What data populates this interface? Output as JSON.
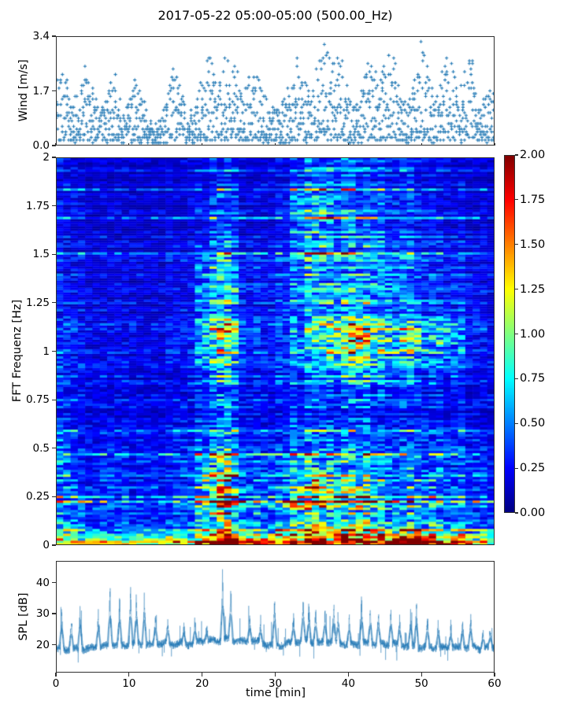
{
  "figure": {
    "title": "2017-05-22 05:00-05:00 (500.00_Hz)",
    "background": "#ffffff",
    "accent_color": "#1f77b4"
  },
  "chart_data": [
    {
      "id": "wind",
      "type": "scatter",
      "marker": "plus",
      "color": "#1f77b4",
      "ylabel": "Wind [m/s]",
      "ylim": [
        0,
        3.4
      ],
      "xlim": [
        0,
        60
      ],
      "yticks": [
        {
          "v": 0.0,
          "label": "0.0"
        },
        {
          "v": 1.7,
          "label": "1.7"
        },
        {
          "v": 3.4,
          "label": "3.4"
        }
      ],
      "envelope_minutes": [
        0,
        1,
        2,
        3,
        4,
        5,
        6,
        7,
        8,
        9,
        10,
        11,
        12,
        13,
        14,
        15,
        16,
        17,
        18,
        19,
        20,
        21,
        22,
        23,
        24,
        25,
        26,
        27,
        28,
        29,
        30,
        31,
        32,
        33,
        34,
        35,
        36,
        37,
        38,
        39,
        40,
        41,
        42,
        43,
        44,
        45,
        46,
        47,
        48,
        49,
        50,
        51,
        52,
        53,
        54,
        55,
        56,
        57,
        58,
        59,
        60
      ],
      "envelope_mean_mps": [
        1.2,
        1.4,
        0.7,
        0.8,
        1.3,
        1.0,
        0.5,
        0.9,
        1.3,
        0.6,
        0.7,
        1.2,
        0.8,
        0.45,
        0.4,
        0.6,
        1.3,
        1.0,
        0.5,
        0.6,
        1.1,
        1.5,
        0.9,
        1.4,
        1.6,
        1.1,
        0.9,
        1.3,
        1.0,
        0.7,
        0.6,
        0.7,
        1.0,
        1.5,
        1.1,
        0.8,
        1.5,
        1.7,
        1.3,
        1.5,
        0.9,
        0.6,
        1.0,
        1.5,
        1.2,
        1.3,
        1.6,
        1.0,
        0.6,
        1.2,
        1.7,
        1.2,
        0.7,
        1.3,
        1.6,
        0.8,
        1.3,
        1.5,
        0.6,
        0.9,
        1.1
      ],
      "points": 1500,
      "quantize_step": 0.085,
      "t_quantize_min": 0.22,
      "seed": 42
    },
    {
      "id": "spectrogram",
      "type": "heatmap",
      "colormap": "jet",
      "ylabel": "FFT Frequenz [Hz]",
      "ylim": [
        0,
        2
      ],
      "xlim": [
        0,
        60
      ],
      "zlim": [
        0,
        2
      ],
      "yticks": [
        {
          "v": 0,
          "label": "0"
        },
        {
          "v": 0.25,
          "label": "0.25"
        },
        {
          "v": 0.5,
          "label": "0.5"
        },
        {
          "v": 0.75,
          "label": "0.75"
        },
        {
          "v": 1,
          "label": "1"
        },
        {
          "v": 1.25,
          "label": "1.25"
        },
        {
          "v": 1.5,
          "label": "1.5"
        },
        {
          "v": 1.75,
          "label": "1.75"
        },
        {
          "v": 2,
          "label": "2"
        }
      ],
      "grid_note": "mean intensity grid; rows = frequency bins 0->2 Hz (bottom->top), cols = time bins 0->60 min",
      "freq_bin_hz": 0.125,
      "time_bin_min": 2.5,
      "values": [
        [
          0.9,
          0.75,
          0.7,
          0.8,
          0.7,
          0.8,
          0.9,
          0.85,
          1.3,
          1.5,
          1.0,
          0.9,
          1.3,
          1.6,
          1.8,
          1.5,
          1.7,
          1.9,
          1.6,
          1.8,
          1.4,
          1.2,
          1.0,
          0.9
        ],
        [
          0.55,
          0.45,
          0.4,
          0.45,
          0.4,
          0.35,
          0.4,
          0.45,
          0.85,
          1.0,
          0.6,
          0.5,
          0.7,
          0.9,
          0.8,
          0.7,
          0.8,
          0.7,
          0.6,
          0.7,
          0.6,
          0.5,
          0.45,
          0.4
        ],
        [
          0.45,
          0.35,
          0.3,
          0.35,
          0.3,
          0.3,
          0.3,
          0.35,
          0.9,
          1.1,
          0.5,
          0.4,
          0.5,
          1.0,
          1.2,
          0.9,
          0.8,
          0.7,
          0.5,
          0.6,
          0.5,
          0.4,
          0.35,
          0.3
        ],
        [
          0.35,
          0.3,
          0.25,
          0.3,
          0.25,
          0.25,
          0.25,
          0.3,
          0.6,
          0.7,
          0.35,
          0.3,
          0.35,
          0.5,
          0.55,
          0.45,
          0.5,
          0.45,
          0.4,
          0.45,
          0.4,
          0.35,
          0.3,
          0.25
        ],
        [
          0.3,
          0.25,
          0.22,
          0.25,
          0.22,
          0.2,
          0.22,
          0.25,
          0.35,
          0.4,
          0.28,
          0.25,
          0.28,
          0.35,
          0.38,
          0.32,
          0.35,
          0.32,
          0.3,
          0.32,
          0.3,
          0.28,
          0.25,
          0.22
        ],
        [
          0.28,
          0.24,
          0.2,
          0.22,
          0.2,
          0.18,
          0.2,
          0.22,
          0.3,
          0.35,
          0.25,
          0.22,
          0.25,
          0.3,
          0.32,
          0.28,
          0.3,
          0.28,
          0.26,
          0.28,
          0.26,
          0.24,
          0.22,
          0.2
        ],
        [
          0.25,
          0.22,
          0.2,
          0.22,
          0.2,
          0.18,
          0.2,
          0.22,
          0.35,
          0.4,
          0.25,
          0.22,
          0.25,
          0.3,
          0.35,
          0.35,
          0.4,
          0.38,
          0.32,
          0.3,
          0.28,
          0.25,
          0.22,
          0.2
        ],
        [
          0.25,
          0.22,
          0.2,
          0.22,
          0.2,
          0.18,
          0.2,
          0.25,
          0.5,
          0.55,
          0.3,
          0.25,
          0.3,
          0.4,
          0.5,
          0.55,
          0.6,
          0.55,
          0.5,
          0.45,
          0.4,
          0.35,
          0.25,
          0.22
        ],
        [
          0.3,
          0.25,
          0.22,
          0.25,
          0.22,
          0.2,
          0.25,
          0.3,
          0.9,
          1.0,
          0.35,
          0.3,
          0.35,
          0.6,
          0.9,
          1.0,
          1.1,
          1.0,
          0.9,
          0.95,
          0.8,
          0.6,
          0.3,
          0.25
        ],
        [
          0.25,
          0.22,
          0.2,
          0.22,
          0.2,
          0.18,
          0.2,
          0.25,
          0.45,
          0.5,
          0.28,
          0.25,
          0.3,
          0.4,
          0.5,
          0.5,
          0.55,
          0.5,
          0.45,
          0.4,
          0.35,
          0.3,
          0.25,
          0.22
        ],
        [
          0.22,
          0.2,
          0.18,
          0.2,
          0.18,
          0.17,
          0.2,
          0.24,
          0.55,
          0.6,
          0.28,
          0.25,
          0.3,
          0.5,
          0.6,
          0.5,
          0.45,
          0.5,
          0.45,
          0.4,
          0.3,
          0.28,
          0.22,
          0.2
        ],
        [
          0.22,
          0.2,
          0.18,
          0.2,
          0.18,
          0.16,
          0.18,
          0.22,
          0.4,
          0.45,
          0.25,
          0.22,
          0.28,
          0.45,
          0.5,
          0.4,
          0.4,
          0.45,
          0.4,
          0.35,
          0.28,
          0.25,
          0.2,
          0.18
        ],
        [
          0.2,
          0.18,
          0.17,
          0.18,
          0.17,
          0.16,
          0.17,
          0.2,
          0.3,
          0.35,
          0.22,
          0.2,
          0.25,
          0.5,
          0.6,
          0.45,
          0.35,
          0.4,
          0.35,
          0.3,
          0.25,
          0.22,
          0.2,
          0.17
        ],
        [
          0.2,
          0.18,
          0.16,
          0.18,
          0.16,
          0.15,
          0.17,
          0.2,
          0.28,
          0.3,
          0.2,
          0.18,
          0.22,
          0.55,
          0.65,
          0.45,
          0.3,
          0.35,
          0.3,
          0.28,
          0.22,
          0.2,
          0.18,
          0.16
        ],
        [
          0.18,
          0.17,
          0.15,
          0.17,
          0.15,
          0.14,
          0.16,
          0.18,
          0.25,
          0.28,
          0.2,
          0.18,
          0.2,
          0.4,
          0.45,
          0.35,
          0.28,
          0.3,
          0.28,
          0.25,
          0.2,
          0.18,
          0.17,
          0.15
        ],
        [
          0.18,
          0.16,
          0.15,
          0.16,
          0.15,
          0.14,
          0.15,
          0.17,
          0.22,
          0.25,
          0.18,
          0.17,
          0.19,
          0.3,
          0.35,
          0.3,
          0.25,
          0.28,
          0.25,
          0.22,
          0.19,
          0.17,
          0.16,
          0.15
        ]
      ],
      "col_profile": [
        1.05,
        1.0,
        0.95,
        1.0,
        0.9,
        0.95,
        1.0,
        1.0,
        1.1,
        1.15,
        0.85,
        0.9,
        1.0,
        1.05,
        1.1,
        1.05,
        1.1,
        1.05,
        1.0,
        1.05,
        1.0,
        0.95,
        0.95,
        1.0
      ],
      "render": {
        "rows": 164,
        "cols": 60,
        "seed": 7,
        "bottom_band_hot_from_min": 19,
        "bottom_band_hot_to_min": 57,
        "bottom_band_hot_level": 1.8,
        "bottom_band_cool_level": 1.2
      }
    },
    {
      "id": "colorbar",
      "type": "colorbar",
      "colormap": "jet",
      "lim": [
        0,
        2
      ],
      "ticks": [
        {
          "v": 0.0,
          "label": "0.00"
        },
        {
          "v": 0.25,
          "label": "0.25"
        },
        {
          "v": 0.5,
          "label": "0.50"
        },
        {
          "v": 0.75,
          "label": "0.75"
        },
        {
          "v": 1.0,
          "label": "1.00"
        },
        {
          "v": 1.25,
          "label": "1.25"
        },
        {
          "v": 1.5,
          "label": "1.50"
        },
        {
          "v": 1.75,
          "label": "1.75"
        },
        {
          "v": 2.0,
          "label": "2.00"
        }
      ]
    },
    {
      "id": "spl",
      "type": "line",
      "color": "#1f77b4",
      "alpha": 0.5,
      "ylabel": "SPL [dB]",
      "xlabel": "time [min]",
      "ylim": [
        11,
        47
      ],
      "xlim": [
        0,
        60
      ],
      "yticks": [
        {
          "v": 20,
          "label": "20"
        },
        {
          "v": 30,
          "label": "30"
        },
        {
          "v": 40,
          "label": "40"
        }
      ],
      "xticks": [
        {
          "v": 0,
          "label": "0"
        },
        {
          "v": 10,
          "label": "10"
        },
        {
          "v": 20,
          "label": "20"
        },
        {
          "v": 30,
          "label": "30"
        },
        {
          "v": 40,
          "label": "40"
        },
        {
          "v": 50,
          "label": "50"
        },
        {
          "v": 60,
          "label": "60"
        }
      ],
      "base_db_per_minute": [
        18.5,
        18.5,
        18.5,
        19,
        18.5,
        19,
        19.5,
        19.5,
        20,
        19.5,
        20,
        20.5,
        20,
        20,
        20.5,
        20.5,
        20,
        20.5,
        20,
        20.5,
        21,
        21.5,
        21,
        22,
        21.5,
        21,
        21,
        21.5,
        20.5,
        20,
        19.5,
        20,
        20.5,
        21,
        21.5,
        21,
        20.5,
        21,
        21,
        20.5,
        20,
        20,
        20.5,
        20,
        20.5,
        20,
        20.5,
        20,
        19.5,
        19.5,
        19,
        19.5,
        19,
        19,
        19.5,
        19,
        19,
        19.5,
        18.5,
        19,
        19
      ],
      "spikes_t_peak": [
        [
          0.8,
          32
        ],
        [
          2.1,
          31
        ],
        [
          3.3,
          34
        ],
        [
          5.8,
          33
        ],
        [
          7.4,
          40
        ],
        [
          8.7,
          36
        ],
        [
          10.2,
          40
        ],
        [
          11.0,
          37
        ],
        [
          12.1,
          38
        ],
        [
          13.6,
          30
        ],
        [
          15.3,
          28
        ],
        [
          17.5,
          27
        ],
        [
          19.0,
          29
        ],
        [
          20.6,
          28
        ],
        [
          22.8,
          45
        ],
        [
          23.9,
          39
        ],
        [
          26.5,
          30
        ],
        [
          28.0,
          28
        ],
        [
          29.9,
          38
        ],
        [
          32.5,
          30
        ],
        [
          33.8,
          35
        ],
        [
          34.6,
          34
        ],
        [
          35.5,
          33
        ],
        [
          36.8,
          32
        ],
        [
          38.0,
          34
        ],
        [
          38.6,
          31
        ],
        [
          40.1,
          30
        ],
        [
          41.8,
          37
        ],
        [
          43.0,
          34
        ],
        [
          44.1,
          33
        ],
        [
          45.8,
          33
        ],
        [
          47.0,
          30
        ],
        [
          48.5,
          31
        ],
        [
          49.3,
          34
        ],
        [
          50.8,
          30
        ],
        [
          52.3,
          29
        ],
        [
          54.0,
          28
        ],
        [
          55.6,
          30
        ],
        [
          56.7,
          30
        ],
        [
          58.4,
          26
        ],
        [
          59.4,
          25
        ]
      ],
      "points": 3600,
      "seed": 1234
    }
  ]
}
